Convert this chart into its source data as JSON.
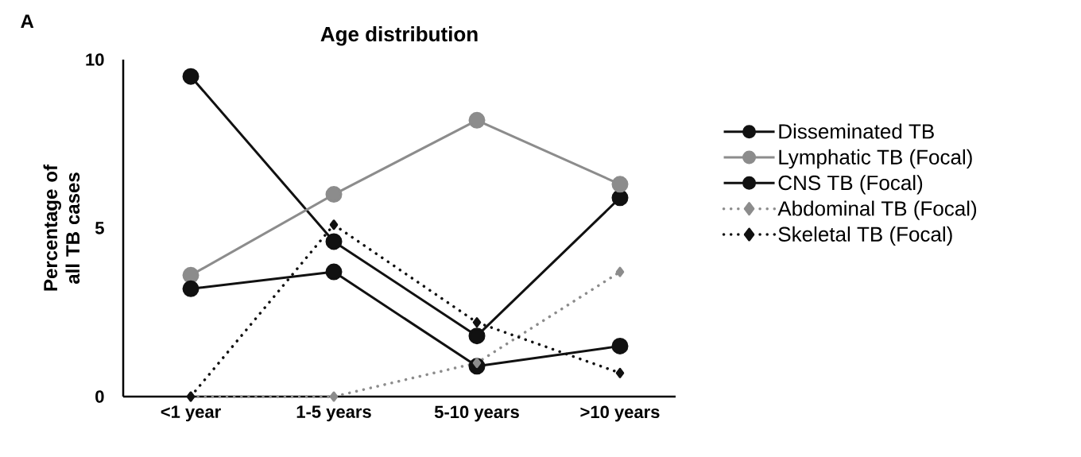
{
  "chart_data": {
    "type": "line",
    "title": "Age distribution",
    "ylabel": "Percentage of all TB cases",
    "annotations": [
      "A"
    ],
    "categories": [
      "<1 year",
      "1-5 years",
      "5-10 years",
      ">10 years"
    ],
    "ylim": [
      0,
      10
    ],
    "yticks": [
      0,
      5,
      10
    ],
    "legend": "right",
    "series": [
      {
        "name": "Disseminated TB",
        "color": "#111111",
        "values": [
          9.5,
          4.6,
          1.8,
          5.9
        ],
        "marker": "circle",
        "line_style": "solid"
      },
      {
        "name": "Lymphatic TB (Focal)",
        "color": "#8c8c8c",
        "values": [
          3.6,
          6.0,
          8.2,
          6.3
        ],
        "marker": "circle",
        "line_style": "solid"
      },
      {
        "name": "CNS TB (Focal)",
        "color": "#111111",
        "values": [
          3.2,
          3.7,
          0.9,
          1.5
        ],
        "marker": "circle",
        "line_style": "solid"
      },
      {
        "name": "Abdominal TB (Focal)",
        "color": "#8c8c8c",
        "values": [
          0,
          0,
          1.0,
          3.7
        ],
        "marker": "diamond",
        "line_style": "dotted"
      },
      {
        "name": "Skeletal TB (Focal)",
        "color": "#111111",
        "values": [
          0,
          5.1,
          2.2,
          0.7
        ],
        "marker": "diamond",
        "line_style": "dotted"
      }
    ]
  }
}
